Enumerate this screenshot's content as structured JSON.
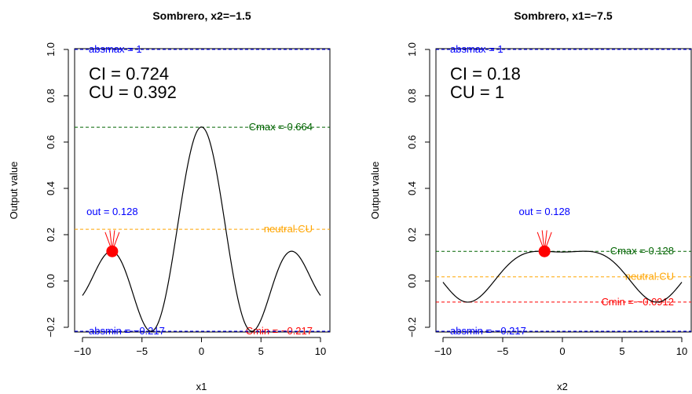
{
  "chart_data": [
    {
      "type": "line",
      "title": "Sombrero, x2=−1.5",
      "xlabel": "x1",
      "ylabel": "Output value",
      "xlim": [
        -10,
        10
      ],
      "ylim": [
        -0.217,
        1.0
      ],
      "xticks": [
        "−10",
        "−5",
        "0",
        "5",
        "10"
      ],
      "yticks": [
        "−0.2",
        "0.0",
        "0.2",
        "0.4",
        "0.6",
        "0.8",
        "1.0"
      ],
      "curve": "sombrero_x1",
      "fixed_other": -1.5,
      "point": {
        "x": -7.5,
        "y": 0.128,
        "color": "#ff0000"
      },
      "ci_text": "CI = 0.724",
      "cu_text": "CU = 0.392",
      "hlines": [
        {
          "y": 1.0,
          "label": "absmax = 1",
          "color": "#0000ff",
          "label_side": "left",
          "style": "dashed"
        },
        {
          "y": 0.664,
          "label": "Cmax =  0.664",
          "color": "#006400",
          "label_side": "right",
          "style": "dashed"
        },
        {
          "y": 0.2231,
          "label": "neutral.CU",
          "color": "#ffa500",
          "label_side": "right",
          "style": "dashed"
        },
        {
          "y": -0.217,
          "label": "Cmin =  −0.217",
          "color": "#ff0000",
          "label_side": "right",
          "style": "dashed"
        },
        {
          "y": -0.217,
          "label": "absmin = −0.217",
          "color": "#0000ff",
          "label_side": "left",
          "style": "dashed"
        }
      ],
      "out_label": "out = 0.128"
    },
    {
      "type": "line",
      "title": "Sombrero, x1=−7.5",
      "xlabel": "x2",
      "ylabel": "Output value",
      "xlim": [
        -10,
        10
      ],
      "ylim": [
        -0.217,
        1.0
      ],
      "xticks": [
        "−10",
        "−5",
        "0",
        "5",
        "10"
      ],
      "yticks": [
        "−0.2",
        "0.0",
        "0.2",
        "0.4",
        "0.6",
        "0.8",
        "1.0"
      ],
      "curve": "sombrero_x2",
      "fixed_other": -7.5,
      "point": {
        "x": -1.5,
        "y": 0.128,
        "color": "#ff0000"
      },
      "ci_text": "CI = 0.18",
      "cu_text": "CU = 1",
      "hlines": [
        {
          "y": 1.0,
          "label": "absmax = 1",
          "color": "#0000ff",
          "label_side": "left",
          "style": "dashed"
        },
        {
          "y": 0.128,
          "label": "Cmax =  0.128",
          "color": "#006400",
          "label_side": "right",
          "style": "dashed"
        },
        {
          "y": 0.0178,
          "label": "neutral.CU",
          "color": "#ffa500",
          "label_side": "right",
          "style": "dashed"
        },
        {
          "y": -0.0912,
          "label": "Cmin =  −0.0912",
          "color": "#ff0000",
          "label_side": "right",
          "style": "dashed"
        },
        {
          "y": -0.217,
          "label": "absmin = −0.217",
          "color": "#0000ff",
          "label_side": "left",
          "style": "dashed"
        }
      ],
      "out_label": "out = 0.128"
    }
  ]
}
